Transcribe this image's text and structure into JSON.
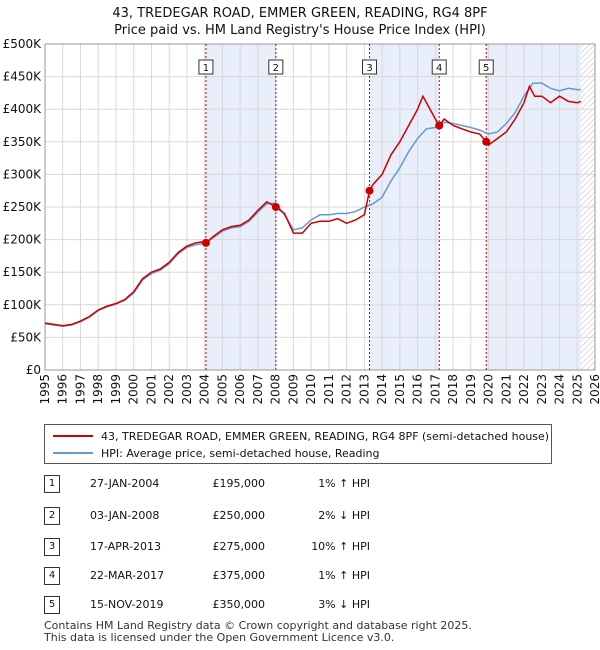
{
  "title_line1": "43, TREDEGAR ROAD, EMMER GREEN, READING, RG4 8PF",
  "title_line2": "Price paid vs. HM Land Registry's House Price Index (HPI)",
  "colors": {
    "property": "#cc0000",
    "hpi": "#6699cc",
    "shade": "#e8eefa",
    "grid": "#d8d8d8",
    "vline": "#cc0000"
  },
  "legend": {
    "property": "43, TREDEGAR ROAD, EMMER GREEN, READING, RG4 8PF (semi-detached house)",
    "hpi": "HPI: Average price, semi-detached house, Reading"
  },
  "sales": [
    {
      "num": "1",
      "date": "27-JAN-2004",
      "price": "£195,000",
      "hpi": "1% ↑ HPI"
    },
    {
      "num": "2",
      "date": "03-JAN-2008",
      "price": "£250,000",
      "hpi": "2% ↓ HPI"
    },
    {
      "num": "3",
      "date": "17-APR-2013",
      "price": "£275,000",
      "hpi": "10% ↑ HPI"
    },
    {
      "num": "4",
      "date": "22-MAR-2017",
      "price": "£375,000",
      "hpi": "1% ↑ HPI"
    },
    {
      "num": "5",
      "date": "15-NOV-2019",
      "price": "£350,000",
      "hpi": "3% ↓ HPI"
    }
  ],
  "footer_line1": "Contains HM Land Registry data © Crown copyright and database right 2025.",
  "footer_line2": "This data is licensed under the Open Government Licence v3.0.",
  "chart_data": {
    "type": "line",
    "xlim": [
      1995,
      2026
    ],
    "ylim": [
      0,
      500000
    ],
    "grid": true,
    "x_ticks": [
      1995,
      1996,
      1997,
      1998,
      1999,
      2000,
      2001,
      2002,
      2003,
      2004,
      2005,
      2006,
      2007,
      2008,
      2009,
      2010,
      2011,
      2012,
      2013,
      2014,
      2015,
      2016,
      2017,
      2018,
      2019,
      2020,
      2021,
      2022,
      2023,
      2024,
      2025,
      2026
    ],
    "y_ticks": [
      0,
      50000,
      100000,
      150000,
      200000,
      250000,
      300000,
      350000,
      400000,
      450000,
      500000
    ],
    "y_tick_labels": [
      "£0",
      "£50K",
      "£100K",
      "£150K",
      "£200K",
      "£250K",
      "£300K",
      "£350K",
      "£400K",
      "£450K",
      "£500K"
    ],
    "shaded_periods": [
      [
        2004.07,
        2008.01
      ],
      [
        2013.29,
        2017.22
      ],
      [
        2019.87,
        2025.2
      ]
    ],
    "hatched_after": 2025.2,
    "sale_points": [
      {
        "label": "1",
        "x": 2004.07,
        "y": 195000
      },
      {
        "label": "2",
        "x": 2008.01,
        "y": 250000
      },
      {
        "label": "3",
        "x": 2013.29,
        "y": 275000
      },
      {
        "label": "4",
        "x": 2017.22,
        "y": 375000
      },
      {
        "label": "5",
        "x": 2019.87,
        "y": 350000
      }
    ],
    "series": [
      {
        "name": "43, TREDEGAR ROAD, EMMER GREEN, READING, RG4 8PF (semi-detached house)",
        "x": [
          1995,
          1995.5,
          1996,
          1996.5,
          1997,
          1997.5,
          1998,
          1998.5,
          1999,
          1999.5,
          2000,
          2000.5,
          2001,
          2001.5,
          2002,
          2002.5,
          2003,
          2003.5,
          2004,
          2004.07,
          2004.5,
          2005,
          2005.5,
          2006,
          2006.5,
          2007,
          2007.5,
          2008.01,
          2008.5,
          2009,
          2009.5,
          2010,
          2010.5,
          2011,
          2011.5,
          2012,
          2012.5,
          2013,
          2013.29,
          2013.5,
          2014,
          2014.5,
          2015,
          2015.5,
          2016,
          2016.3,
          2016.6,
          2017,
          2017.22,
          2017.5,
          2018,
          2018.5,
          2019,
          2019.5,
          2019.87,
          2020,
          2020.5,
          2021,
          2021.5,
          2022,
          2022.3,
          2022.6,
          2023,
          2023.5,
          2024,
          2024.5,
          2025,
          2025.2
        ],
        "y": [
          72000,
          70000,
          68000,
          70000,
          75000,
          82000,
          92000,
          98000,
          102000,
          108000,
          120000,
          140000,
          150000,
          155000,
          165000,
          180000,
          190000,
          195000,
          197000,
          195000,
          205000,
          215000,
          220000,
          222000,
          230000,
          245000,
          258000,
          250000,
          240000,
          210000,
          210000,
          225000,
          228000,
          228000,
          232000,
          225000,
          230000,
          238000,
          275000,
          285000,
          300000,
          330000,
          350000,
          375000,
          400000,
          420000,
          405000,
          385000,
          375000,
          385000,
          375000,
          370000,
          365000,
          362000,
          350000,
          345000,
          355000,
          365000,
          385000,
          410000,
          435000,
          420000,
          420000,
          410000,
          420000,
          412000,
          410000,
          412000
        ]
      },
      {
        "name": "HPI: Average price, semi-detached house, Reading",
        "x": [
          1995,
          1995.5,
          1996,
          1996.5,
          1997,
          1997.5,
          1998,
          1998.5,
          1999,
          1999.5,
          2000,
          2000.5,
          2001,
          2001.5,
          2002,
          2002.5,
          2003,
          2003.5,
          2004,
          2004.5,
          2005,
          2005.5,
          2006,
          2006.5,
          2007,
          2007.5,
          2008,
          2008.5,
          2009,
          2009.5,
          2010,
          2010.5,
          2011,
          2011.5,
          2012,
          2012.5,
          2013,
          2013.5,
          2014,
          2014.5,
          2015,
          2015.5,
          2016,
          2016.5,
          2017,
          2017.5,
          2018,
          2018.5,
          2019,
          2019.5,
          2020,
          2020.5,
          2021,
          2021.5,
          2022,
          2022.5,
          2023,
          2023.5,
          2024,
          2024.5,
          2025,
          2025.2
        ],
        "y": [
          71000,
          69000,
          67000,
          69000,
          74000,
          81000,
          91000,
          97000,
          101000,
          107000,
          118000,
          138000,
          148000,
          153000,
          163000,
          178000,
          188000,
          192000,
          194000,
          203000,
          213000,
          218000,
          220000,
          228000,
          242000,
          255000,
          256000,
          238000,
          215000,
          218000,
          230000,
          238000,
          238000,
          240000,
          240000,
          243000,
          250000,
          255000,
          265000,
          290000,
          310000,
          335000,
          355000,
          370000,
          372000,
          380000,
          378000,
          375000,
          372000,
          368000,
          362000,
          365000,
          378000,
          395000,
          420000,
          440000,
          440000,
          432000,
          428000,
          432000,
          430000,
          430000
        ]
      }
    ]
  }
}
